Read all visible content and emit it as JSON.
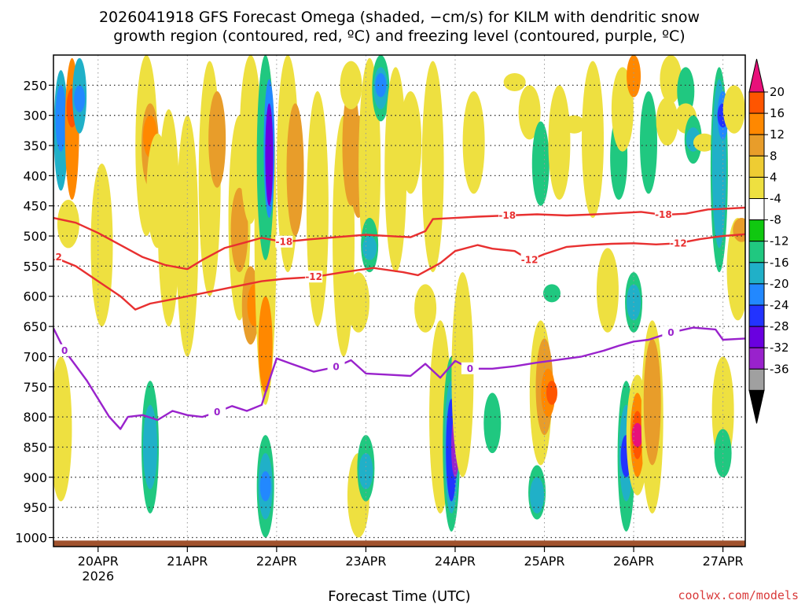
{
  "chart_data": {
    "type": "heatmap",
    "title_line1": "2026041918 GFS Forecast Omega (shaded, −cm/s) for KILM with dendritic snow",
    "title_line2": "growth region (contoured, red, ºC) and freezing level (contoured, purple, ºC)",
    "xlabel": "Forecast Time (UTC)",
    "ylabel": "",
    "credit": "coolwx.com/models",
    "x_ticks": [
      {
        "label": "20APR",
        "sub": "2026",
        "t": 12
      },
      {
        "label": "21APR",
        "t": 36
      },
      {
        "label": "22APR",
        "t": 60
      },
      {
        "label": "23APR",
        "t": 84
      },
      {
        "label": "24APR",
        "t": 108
      },
      {
        "label": "25APR",
        "t": 132
      },
      {
        "label": "26APR",
        "t": 156
      },
      {
        "label": "27APR",
        "t": 180
      }
    ],
    "x_range_hours": [
      0,
      186
    ],
    "y_ticks": [
      250,
      300,
      350,
      400,
      450,
      500,
      550,
      600,
      650,
      700,
      750,
      800,
      850,
      900,
      950,
      1000
    ],
    "y_range_hpa": [
      200,
      1015
    ],
    "surface_pressure_hpa": 1005,
    "colorbar": {
      "labels": [
        "20",
        "16",
        "12",
        "8",
        "4",
        "-4",
        "-8",
        "-12",
        "-16",
        "-20",
        "-24",
        "-28",
        "-32",
        "-36"
      ],
      "colors": [
        "#ff5500",
        "#ff8800",
        "#e89d2a",
        "#eecc33",
        "#eee040",
        "#ffffff",
        "#10c810",
        "#20c880",
        "#20b0c8",
        "#2288ff",
        "#2233ff",
        "#6a00e0",
        "#9922cc",
        "#a0a0a0",
        "#000000"
      ],
      "top_cap_color": "#e8107a",
      "bottom_cap_color": "#000000"
    },
    "freezing_level": {
      "label": "0",
      "color": "#9922cc",
      "points": [
        [
          0,
          653
        ],
        [
          3,
          690
        ],
        [
          6,
          715
        ],
        [
          9,
          740
        ],
        [
          12,
          770
        ],
        [
          15,
          800
        ],
        [
          18,
          820
        ],
        [
          20,
          800
        ],
        [
          24,
          797
        ],
        [
          28,
          805
        ],
        [
          32,
          790
        ],
        [
          36,
          797
        ],
        [
          40,
          800
        ],
        [
          44,
          792
        ],
        [
          48,
          782
        ],
        [
          52,
          790
        ],
        [
          56,
          780
        ],
        [
          58,
          740
        ],
        [
          60,
          703
        ],
        [
          64,
          712
        ],
        [
          70,
          725
        ],
        [
          76,
          717
        ],
        [
          80,
          706
        ],
        [
          84,
          728
        ],
        [
          90,
          730
        ],
        [
          96,
          732
        ],
        [
          100,
          712
        ],
        [
          104,
          735
        ],
        [
          108,
          707
        ],
        [
          112,
          720
        ],
        [
          118,
          720
        ],
        [
          124,
          716
        ],
        [
          130,
          710
        ],
        [
          136,
          705
        ],
        [
          142,
          700
        ],
        [
          148,
          690
        ],
        [
          152,
          682
        ],
        [
          156,
          675
        ],
        [
          160,
          672
        ],
        [
          166,
          660
        ],
        [
          172,
          652
        ],
        [
          178,
          655
        ],
        [
          180,
          672
        ],
        [
          186,
          670
        ]
      ]
    },
    "dgz_contours": [
      {
        "label": "-12",
        "color": "#e83030",
        "points": [
          [
            0,
            535
          ],
          [
            6,
            550
          ],
          [
            12,
            575
          ],
          [
            18,
            600
          ],
          [
            22,
            622
          ],
          [
            26,
            612
          ],
          [
            32,
            605
          ],
          [
            40,
            595
          ],
          [
            48,
            585
          ],
          [
            56,
            575
          ],
          [
            62,
            571
          ],
          [
            70,
            568
          ],
          [
            78,
            560
          ],
          [
            86,
            553
          ],
          [
            94,
            560
          ],
          [
            98,
            565
          ],
          [
            104,
            545
          ],
          [
            108,
            525
          ],
          [
            114,
            515
          ],
          [
            118,
            521
          ],
          [
            124,
            525
          ],
          [
            128,
            540
          ],
          [
            132,
            530
          ],
          [
            138,
            518
          ],
          [
            144,
            515
          ],
          [
            150,
            513
          ],
          [
            156,
            512
          ],
          [
            162,
            514
          ],
          [
            168,
            512
          ],
          [
            174,
            505
          ],
          [
            180,
            500
          ],
          [
            186,
            497
          ]
        ]
      },
      {
        "label": "-18",
        "color": "#e83030",
        "points": [
          [
            0,
            470
          ],
          [
            6,
            478
          ],
          [
            12,
            495
          ],
          [
            18,
            515
          ],
          [
            24,
            535
          ],
          [
            30,
            548
          ],
          [
            36,
            555
          ],
          [
            40,
            540
          ],
          [
            46,
            520
          ],
          [
            52,
            510
          ],
          [
            56,
            503
          ],
          [
            62,
            510
          ],
          [
            68,
            506
          ],
          [
            76,
            502
          ],
          [
            84,
            498
          ],
          [
            90,
            500
          ],
          [
            96,
            502
          ],
          [
            100,
            492
          ],
          [
            102,
            472
          ],
          [
            108,
            470
          ],
          [
            114,
            468
          ],
          [
            122,
            466
          ],
          [
            130,
            464
          ],
          [
            138,
            466
          ],
          [
            146,
            464
          ],
          [
            152,
            462
          ],
          [
            158,
            460
          ],
          [
            164,
            465
          ],
          [
            170,
            463
          ],
          [
            176,
            456
          ],
          [
            180,
            455
          ],
          [
            186,
            453
          ]
        ]
      }
    ],
    "omega_cells": [
      {
        "t": 2,
        "p0": 225,
        "p1": 425,
        "v": -12
      },
      {
        "t": 2,
        "p0": 250,
        "p1": 360,
        "v": -16
      },
      {
        "t": 5,
        "p0": 205,
        "p1": 440,
        "v": 12
      },
      {
        "t": 5,
        "p0": 255,
        "p1": 320,
        "v": 16
      },
      {
        "t": 7,
        "p0": 205,
        "p1": 330,
        "v": -12
      },
      {
        "t": 7,
        "p0": 250,
        "p1": 295,
        "v": -16
      },
      {
        "t": 4,
        "p0": 440,
        "p1": 520,
        "v": 4
      },
      {
        "t": 2,
        "p0": 700,
        "p1": 940,
        "v": 4
      },
      {
        "t": 13,
        "p0": 380,
        "p1": 650,
        "v": 4
      },
      {
        "t": 25,
        "p0": 200,
        "p1": 500,
        "v": 4
      },
      {
        "t": 26,
        "p0": 280,
        "p1": 420,
        "v": 8
      },
      {
        "t": 26,
        "p0": 300,
        "p1": 370,
        "v": 12
      },
      {
        "t": 28,
        "p0": 330,
        "p1": 520,
        "v": 4
      },
      {
        "t": 31,
        "p0": 290,
        "p1": 650,
        "v": 4
      },
      {
        "t": 26,
        "p0": 740,
        "p1": 960,
        "v": -8
      },
      {
        "t": 26,
        "p0": 780,
        "p1": 920,
        "v": -12
      },
      {
        "t": 36,
        "p0": 300,
        "p1": 700,
        "v": 4
      },
      {
        "t": 42,
        "p0": 210,
        "p1": 600,
        "v": 4
      },
      {
        "t": 44,
        "p0": 260,
        "p1": 420,
        "v": 8
      },
      {
        "t": 50,
        "p0": 300,
        "p1": 640,
        "v": 4
      },
      {
        "t": 50,
        "p0": 420,
        "p1": 560,
        "v": 8
      },
      {
        "t": 53,
        "p0": 200,
        "p1": 480,
        "v": 4
      },
      {
        "t": 53,
        "p0": 550,
        "p1": 680,
        "v": 8
      },
      {
        "t": 54,
        "p0": 580,
        "p1": 650,
        "v": 12
      },
      {
        "t": 57,
        "p0": 200,
        "p1": 780,
        "v": 4
      },
      {
        "t": 57,
        "p0": 200,
        "p1": 540,
        "v": -8
      },
      {
        "t": 58,
        "p0": 240,
        "p1": 470,
        "v": -16
      },
      {
        "t": 58,
        "p0": 280,
        "p1": 450,
        "v": -24
      },
      {
        "t": 57,
        "p0": 600,
        "p1": 760,
        "v": 12
      },
      {
        "t": 57,
        "p0": 830,
        "p1": 1000,
        "v": -8
      },
      {
        "t": 57,
        "p0": 860,
        "p1": 970,
        "v": -12
      },
      {
        "t": 57,
        "p0": 890,
        "p1": 940,
        "v": -16
      },
      {
        "t": 63,
        "p0": 200,
        "p1": 560,
        "v": 4
      },
      {
        "t": 65,
        "p0": 280,
        "p1": 500,
        "v": 8
      },
      {
        "t": 71,
        "p0": 260,
        "p1": 650,
        "v": 4
      },
      {
        "t": 78,
        "p0": 300,
        "p1": 700,
        "v": 4
      },
      {
        "t": 80,
        "p0": 250,
        "p1": 450,
        "v": 8
      },
      {
        "t": 80,
        "p0": 210,
        "p1": 290,
        "v": 4
      },
      {
        "t": 82,
        "p0": 560,
        "p1": 660,
        "v": 4
      },
      {
        "t": 82,
        "p0": 860,
        "p1": 1000,
        "v": 4
      },
      {
        "t": 82,
        "p0": 300,
        "p1": 470,
        "v": 8
      },
      {
        "t": 85,
        "p0": 205,
        "p1": 560,
        "v": 4
      },
      {
        "t": 85,
        "p0": 470,
        "p1": 560,
        "v": -8
      },
      {
        "t": 85,
        "p0": 500,
        "p1": 540,
        "v": -12
      },
      {
        "t": 84,
        "p0": 830,
        "p1": 940,
        "v": -8
      },
      {
        "t": 84,
        "p0": 860,
        "p1": 920,
        "v": -12
      },
      {
        "t": 88,
        "p0": 200,
        "p1": 310,
        "v": -8
      },
      {
        "t": 88,
        "p0": 220,
        "p1": 290,
        "v": -12
      },
      {
        "t": 88,
        "p0": 230,
        "p1": 270,
        "v": -16
      },
      {
        "t": 92,
        "p0": 220,
        "p1": 560,
        "v": 4
      },
      {
        "t": 96,
        "p0": 260,
        "p1": 430,
        "v": 4
      },
      {
        "t": 100,
        "p0": 580,
        "p1": 660,
        "v": 4
      },
      {
        "t": 102,
        "p0": 210,
        "p1": 560,
        "v": 4
      },
      {
        "t": 104,
        "p0": 640,
        "p1": 960,
        "v": 4
      },
      {
        "t": 107,
        "p0": 700,
        "p1": 990,
        "v": -8
      },
      {
        "t": 107,
        "p0": 740,
        "p1": 960,
        "v": -12
      },
      {
        "t": 107,
        "p0": 770,
        "p1": 940,
        "v": -20
      },
      {
        "t": 108,
        "p0": 800,
        "p1": 900,
        "v": -28
      },
      {
        "t": 110,
        "p0": 560,
        "p1": 900,
        "v": 4
      },
      {
        "t": 113,
        "p0": 260,
        "p1": 430,
        "v": 4
      },
      {
        "t": 118,
        "p0": 760,
        "p1": 860,
        "v": -8
      },
      {
        "t": 124,
        "p0": 230,
        "p1": 260,
        "v": 4
      },
      {
        "t": 128,
        "p0": 250,
        "p1": 340,
        "v": 4
      },
      {
        "t": 131,
        "p0": 310,
        "p1": 450,
        "v": -8
      },
      {
        "t": 131,
        "p0": 640,
        "p1": 880,
        "v": 4
      },
      {
        "t": 132,
        "p0": 670,
        "p1": 830,
        "v": 8
      },
      {
        "t": 133,
        "p0": 720,
        "p1": 800,
        "v": 12
      },
      {
        "t": 134,
        "p0": 740,
        "p1": 780,
        "v": 16
      },
      {
        "t": 134,
        "p0": 580,
        "p1": 610,
        "v": -8
      },
      {
        "t": 130,
        "p0": 880,
        "p1": 970,
        "v": -8
      },
      {
        "t": 130,
        "p0": 900,
        "p1": 960,
        "v": -12
      },
      {
        "t": 136,
        "p0": 250,
        "p1": 440,
        "v": 4
      },
      {
        "t": 140,
        "p0": 300,
        "p1": 330,
        "v": 4
      },
      {
        "t": 145,
        "p0": 210,
        "p1": 470,
        "v": 4
      },
      {
        "t": 149,
        "p0": 520,
        "p1": 660,
        "v": 4
      },
      {
        "t": 152,
        "p0": 300,
        "p1": 440,
        "v": -8
      },
      {
        "t": 153,
        "p0": 220,
        "p1": 360,
        "v": 4
      },
      {
        "t": 154,
        "p0": 740,
        "p1": 990,
        "v": -8
      },
      {
        "t": 154,
        "p0": 780,
        "p1": 940,
        "v": -12
      },
      {
        "t": 154,
        "p0": 830,
        "p1": 900,
        "v": -20
      },
      {
        "t": 156,
        "p0": 200,
        "p1": 270,
        "v": 12
      },
      {
        "t": 156,
        "p0": 560,
        "p1": 660,
        "v": -8
      },
      {
        "t": 156,
        "p0": 580,
        "p1": 640,
        "v": -12
      },
      {
        "t": 157,
        "p0": 730,
        "p1": 930,
        "v": 4
      },
      {
        "t": 157,
        "p0": 760,
        "p1": 900,
        "v": 12
      },
      {
        "t": 157,
        "p0": 790,
        "p1": 870,
        "v": 16
      },
      {
        "t": 157,
        "p0": 810,
        "p1": 850,
        "v": 20
      },
      {
        "t": 160,
        "p0": 260,
        "p1": 430,
        "v": -8
      },
      {
        "t": 161,
        "p0": 640,
        "p1": 960,
        "v": 4
      },
      {
        "t": 161,
        "p0": 670,
        "p1": 880,
        "v": 8
      },
      {
        "t": 165,
        "p0": 270,
        "p1": 350,
        "v": 4
      },
      {
        "t": 166,
        "p0": 200,
        "p1": 280,
        "v": 4
      },
      {
        "t": 170,
        "p0": 220,
        "p1": 300,
        "v": -8
      },
      {
        "t": 170,
        "p0": 280,
        "p1": 330,
        "v": 4
      },
      {
        "t": 172,
        "p0": 300,
        "p1": 380,
        "v": -8
      },
      {
        "t": 172,
        "p0": 320,
        "p1": 360,
        "v": -12
      },
      {
        "t": 175,
        "p0": 330,
        "p1": 360,
        "v": 4
      },
      {
        "t": 179,
        "p0": 220,
        "p1": 560,
        "v": -8
      },
      {
        "t": 179,
        "p0": 240,
        "p1": 520,
        "v": -12
      },
      {
        "t": 180,
        "p0": 260,
        "p1": 340,
        "v": -16
      },
      {
        "t": 180,
        "p0": 280,
        "p1": 320,
        "v": -20
      },
      {
        "t": 180,
        "p0": 700,
        "p1": 880,
        "v": 4
      },
      {
        "t": 180,
        "p0": 820,
        "p1": 900,
        "v": -8
      },
      {
        "t": 183,
        "p0": 250,
        "p1": 330,
        "v": 4
      },
      {
        "t": 184,
        "p0": 470,
        "p1": 640,
        "v": 4
      },
      {
        "t": 185,
        "p0": 470,
        "p1": 510,
        "v": 8
      }
    ]
  }
}
